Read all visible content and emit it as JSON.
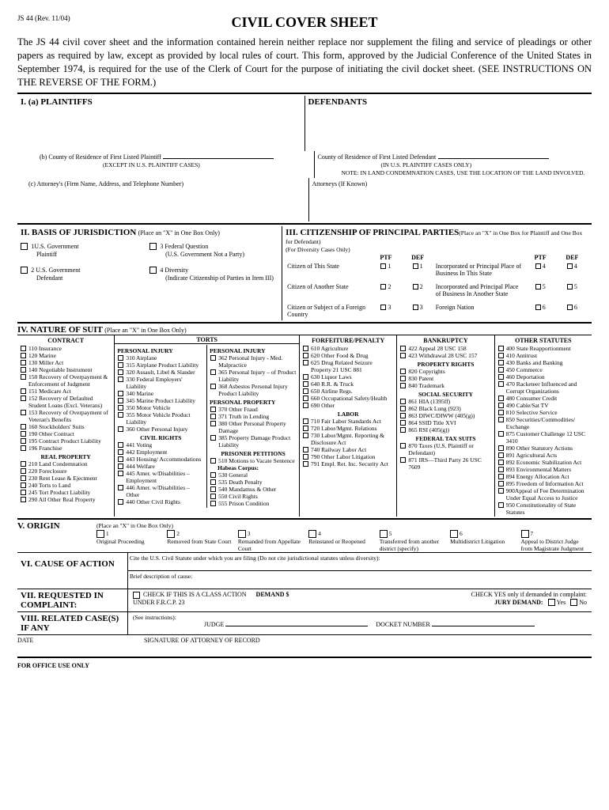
{
  "form_id": "JS 44 (Rev. 11/04)",
  "title": "CIVIL COVER SHEET",
  "intro": "The JS 44 civil cover sheet and the information contained herein neither replace nor supplement the filing and service of pleadings or other papers as required by law, except as provided by local rules of court. This form, approved by the Judicial Conference of the United States in September 1974, is required for the use of the Clerk of Court for the purpose of initiating the civil docket sheet. (SEE INSTRUCTIONS ON THE REVERSE OF THE FORM.)",
  "s1": {
    "plaintiffs_hd": "I.   (a)   PLAINTIFFS",
    "defendants_hd": "DEFENDANTS",
    "b_label": "(b)   County of Residence of First Listed Plaintiff",
    "b_sub": "(EXCEPT IN U.S. PLAINTIFF CASES)",
    "def_county": "County of Residence of First Listed Defendant",
    "def_county_sub": "(IN U.S. PLAINTIFF CASES ONLY)",
    "note_land": "NOTE:   IN LAND CONDEMNATION CASES, USE THE LOCATION OF THE LAND INVOLVED.",
    "c_label": "(c)   Attorney's (Firm Name, Address, and Telephone Number)",
    "def_atty": "Attorneys (If Known)"
  },
  "s2": {
    "hd": "II. BASIS OF JURISDICTION",
    "sub": "(Place an \"X\" in One Box Only)",
    "opt1a": "1U.S. Government",
    "opt1b": "Plaintiff",
    "opt2a": "2 U.S. Government",
    "opt2b": "Defendant",
    "opt3a": "3 Federal Question",
    "opt3b": "(U.S. Government Not a Party)",
    "opt4a": "4 Diversity",
    "opt4b": "(Indicate Citizenship of Parties in Item III)"
  },
  "s3": {
    "hd": "III. CITIZENSHIP OF PRINCIPAL PARTIES",
    "sub": "(Place an \"X\" in One Box for Plaintiff and One Box for Defendant)",
    "for_div": "(For Diversity Cases Only)",
    "ptf": "PTF",
    "def": "DEF",
    "r1a": "Citizen of This State",
    "r1b": "Incorporated or Principal Place of Business In This State",
    "r2a": "Citizen of Another State",
    "r2b": "Incorporated and Principal Place of Business In Another State",
    "r3a": "Citizen or Subject of a Foreign Country",
    "r3b": "Foreign Nation"
  },
  "s4": {
    "hd": "IV. NATURE OF SUIT",
    "sub": "(Place an \"X\" in One Box Only)",
    "contract_hd": "CONTRACT",
    "contract": [
      "110 Insurance",
      "120 Marine",
      "130 Miller Act",
      "140 Negotiable Instrument",
      "150 Recovery of Overpayment & Enforcement of Judgment",
      "151 Medicare Act",
      "152 Recovery of Defaulted Student Loans (Excl. Veterans)",
      "153 Recovery of Overpayment of Veteran's Benefits",
      "160 Stockholders' Suits",
      "190 Other Contract",
      "195 Contract Product Liability",
      "196 Franchise"
    ],
    "realprop_hd": "REAL PROPERTY",
    "realprop": [
      "210 Land Condemnation",
      "220 Foreclosure",
      "230 Rent Lease & Ejectment",
      "240 Torts to Land",
      "245 Tort Product Liability",
      "290 All Other Real Property"
    ],
    "torts_hd": "TORTS",
    "pi_hd": "PERSONAL INJURY",
    "pi1": [
      "310 Airplane",
      "315 Airplane Product Liability",
      "320 Assault, Libel & Slander",
      "330 Federal Employers' Liability",
      "340 Marine",
      "345 Marine Product Liability",
      "350 Motor Vehicle",
      "355 Motor Vehicle Product Liability",
      "360 Other Personal Injury"
    ],
    "civrights_hd": "CIVIL RIGHTS",
    "civrights": [
      "441 Voting",
      "442 Employment",
      "443 Housing/ Accommodations",
      "444 Welfare",
      "445 Amer. w/Disabilities – Employment",
      "446 Amer. w/Disabilities – Other",
      "440 Other Civil Rights"
    ],
    "pi2_hd": "PERSONAL INJURY",
    "pi2": [
      "362 Personal Injury - Med. Malpractice",
      "365 Personal Injury – of Product Liability",
      "368 Asbestos Personal Injury Product Liability"
    ],
    "pp_hd": "PERSONAL PROPERTY",
    "pp": [
      "370 Other Fraud",
      "371 Truth in Lending",
      "380 Other Personal Property Damage",
      "385 Property Damage Product Liability"
    ],
    "pris_hd": "PRISONER PETITIONS",
    "pris1": [
      "510 Motions to Vacate Sentence"
    ],
    "habeas": "Habeas Corpus:",
    "pris2": [
      "530 General",
      "535 Death Penalty",
      "540 Mandamus & Other",
      "550 Civil Rights",
      "555 Prison Condition"
    ],
    "forf_hd": "FORFEITURE/PENALTY",
    "forf": [
      "610 Agriculture",
      "620 Other Food & Drug",
      "625 Drug Related Seizure Property 21 USC 881",
      "630 Liquor Laws",
      "640 R.R. & Truck",
      "650 Airline Regs.",
      "660 Occupational Safety/Health",
      "690 Other"
    ],
    "labor_hd": "LABOR",
    "labor": [
      "710 Fair Labor Standards Act",
      "720 Labor/Mgmt. Relations",
      "730 Labor/Mgmt. Reporting & Disclosure Act",
      "740 Railway Labor Act",
      "790 Other Labor Litigation",
      "791 Empl. Ret. Inc. Security Act"
    ],
    "bank_hd": "BANKRUPTCY",
    "bank": [
      "422 Appeal 28 USC 158",
      "423 Withdrawal 28 USC 157"
    ],
    "prop_hd": "PROPERTY RIGHTS",
    "prop": [
      "820 Copyrights",
      "830 Patent",
      "840 Trademark"
    ],
    "ss_hd": "SOCIAL SECURITY",
    "ss": [
      "861 HIA (1395ff)",
      "862 Black Lung (923)",
      "863 DIWC/DIWW (405(g))",
      "864 SSID Title XVI",
      "865 RSI (405(g))"
    ],
    "tax_hd": "FEDERAL TAX SUITS",
    "tax": [
      "870 Taxes (U.S. Plaintiff or Defendant)",
      "871 IRS—Third Party 26 USC 7609"
    ],
    "other_hd": "OTHER STATUTES",
    "other": [
      "400 State Reapportionment",
      "410 Antitrust",
      "430 Banks and Banking",
      "450 Commerce",
      "460 Deportation",
      "470 Racketeer Influenced and Corrupt Organizations",
      "480 Consumer Credit",
      "490 Cable/Sat TV",
      "810 Selective Service",
      "850 Securities/Commodities/ Exchange",
      "875 Customer Challenge 12 USC 3410",
      "890 Other Statutory Actions",
      "891 Agricultural Acts",
      "892 Economic Stabilization Act",
      "893 Environmental Matters",
      "894 Energy Allocation Act",
      "895 Freedom of Information Act",
      "900Appeal of Fee Determination Under Equal Access to Justice",
      "950 Constitutionality of State Statutes"
    ]
  },
  "s5": {
    "hd": "V. ORIGIN",
    "sub": "(Place an \"X\" in One Box Only)",
    "opts": [
      "Original Proceeding",
      "Removed from State Court",
      "Remanded from Appellate Court",
      "Reinstated or Reopened",
      "Transferred from another district (specify)",
      "Multidistrict Litigation",
      "Appeal to District Judge from Magistrate Judgment"
    ]
  },
  "s6": {
    "hd": "VI. CAUSE OF ACTION",
    "line1": "Cite the U.S. Civil Statute under which you are filing (Do not cite jurisdictional statutes unless diversity):",
    "line2": "Brief description of cause:"
  },
  "s7": {
    "hd": "VII. REQUESTED IN COMPLAINT:",
    "class": "CHECK IF THIS IS A CLASS ACTION",
    "frcp": "UNDER F.R.C.P. 23",
    "demand": "DEMAND $",
    "jury_note": "CHECK YES only if demanded in complaint:",
    "jury": "JURY DEMAND:",
    "yes": "Yes",
    "no": "No"
  },
  "s8": {
    "hd": "VIII. RELATED CASE(S) IF ANY",
    "see": "(See instructions):",
    "judge": "JUDGE",
    "docket": "DOCKET NUMBER"
  },
  "date": "DATE",
  "sig": "SIGNATURE OF ATTORNEY OF RECORD",
  "office": "FOR OFFICE USE ONLY"
}
